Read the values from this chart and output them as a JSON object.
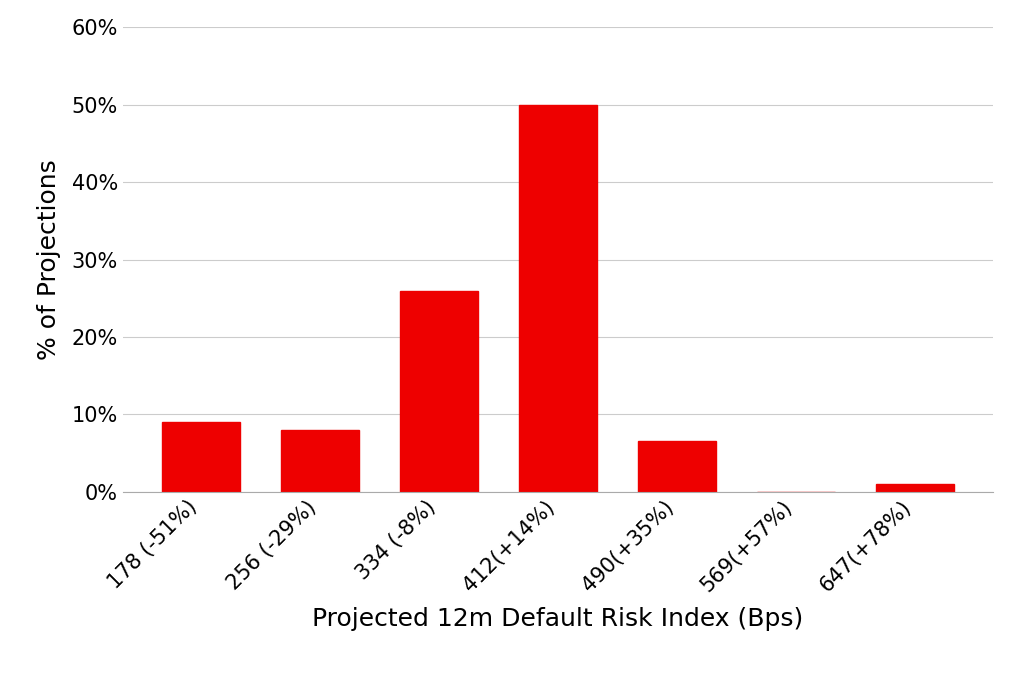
{
  "categories": [
    "178 (-51%)",
    "256 (-29%)",
    "334 (-8%)",
    "412(+14%)",
    "490(+35%)",
    "569(+57%)",
    "647(+78%)"
  ],
  "values": [
    0.09,
    0.08,
    0.26,
    0.5,
    0.065,
    0.0,
    0.01
  ],
  "bar_color": "#ee0000",
  "xlabel": "Projected 12m Default Risk Index (Bps)",
  "ylabel": "% of Projections",
  "ylim": [
    0,
    0.6
  ],
  "yticks": [
    0.0,
    0.1,
    0.2,
    0.3,
    0.4,
    0.5,
    0.6
  ],
  "background_color": "#ffffff",
  "grid_color": "#cccccc",
  "xlabel_fontsize": 18,
  "ylabel_fontsize": 18,
  "tick_fontsize": 15,
  "bar_width": 0.65
}
